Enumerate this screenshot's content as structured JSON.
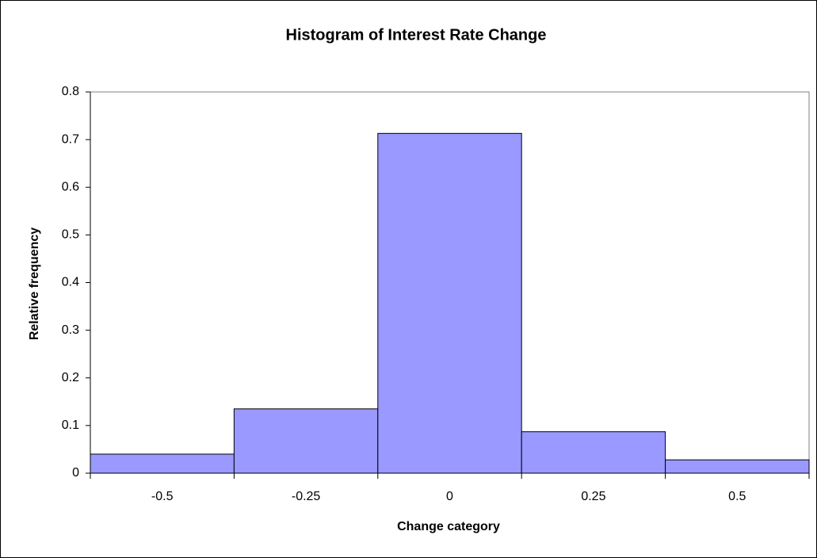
{
  "chart_data": {
    "type": "bar",
    "title": "Histogram of Interest Rate Change",
    "x_label": "Change category",
    "y_label": "Relative frequency",
    "categories": [
      "-0.5",
      "-0.25",
      "0",
      "0.25",
      "0.5"
    ],
    "values": [
      0.04,
      0.135,
      0.713,
      0.087,
      0.028
    ],
    "color": "#9999ff",
    "ylim": [
      0,
      0.8
    ],
    "yticks": [
      0,
      0.1,
      0.2,
      0.3,
      0.4,
      0.5,
      0.6,
      0.7,
      0.8
    ],
    "grid": false
  }
}
